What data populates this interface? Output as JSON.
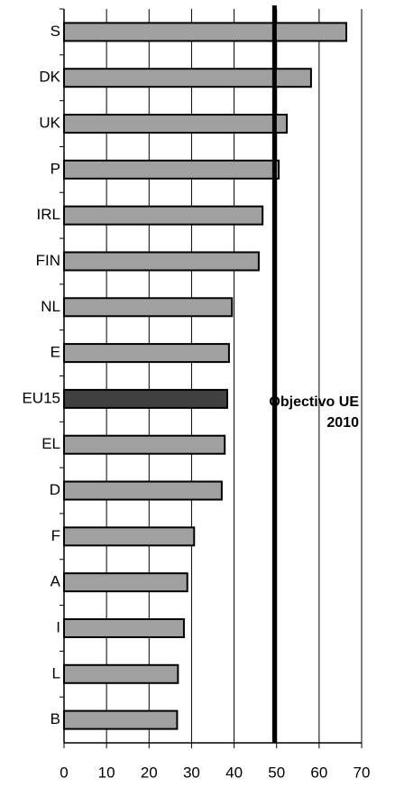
{
  "chart_data": {
    "type": "barh",
    "categories": [
      "S",
      "DK",
      "UK",
      "P",
      "IRL",
      "FIN",
      "NL",
      "E",
      "EU15",
      "EL",
      "D",
      "F",
      "A",
      "I",
      "L",
      "B"
    ],
    "values": [
      66.4,
      58.1,
      52.4,
      50.5,
      46.7,
      45.8,
      39.5,
      38.8,
      38.4,
      37.8,
      37.1,
      30.6,
      29.0,
      28.2,
      26.8,
      26.6
    ],
    "colors": [
      "#a0a0a0",
      "#a0a0a0",
      "#a0a0a0",
      "#a0a0a0",
      "#a0a0a0",
      "#a0a0a0",
      "#a0a0a0",
      "#a0a0a0",
      "#404040",
      "#a0a0a0",
      "#a0a0a0",
      "#a0a0a0",
      "#a0a0a0",
      "#a0a0a0",
      "#a0a0a0",
      "#a0a0a0"
    ],
    "xlim": [
      0,
      70
    ],
    "xticks": [
      0,
      10,
      20,
      30,
      40,
      50,
      60,
      70
    ],
    "grid": true,
    "reference_line": {
      "value": 49.5,
      "label": [
        "Objectivo UE",
        "2010"
      ]
    }
  }
}
